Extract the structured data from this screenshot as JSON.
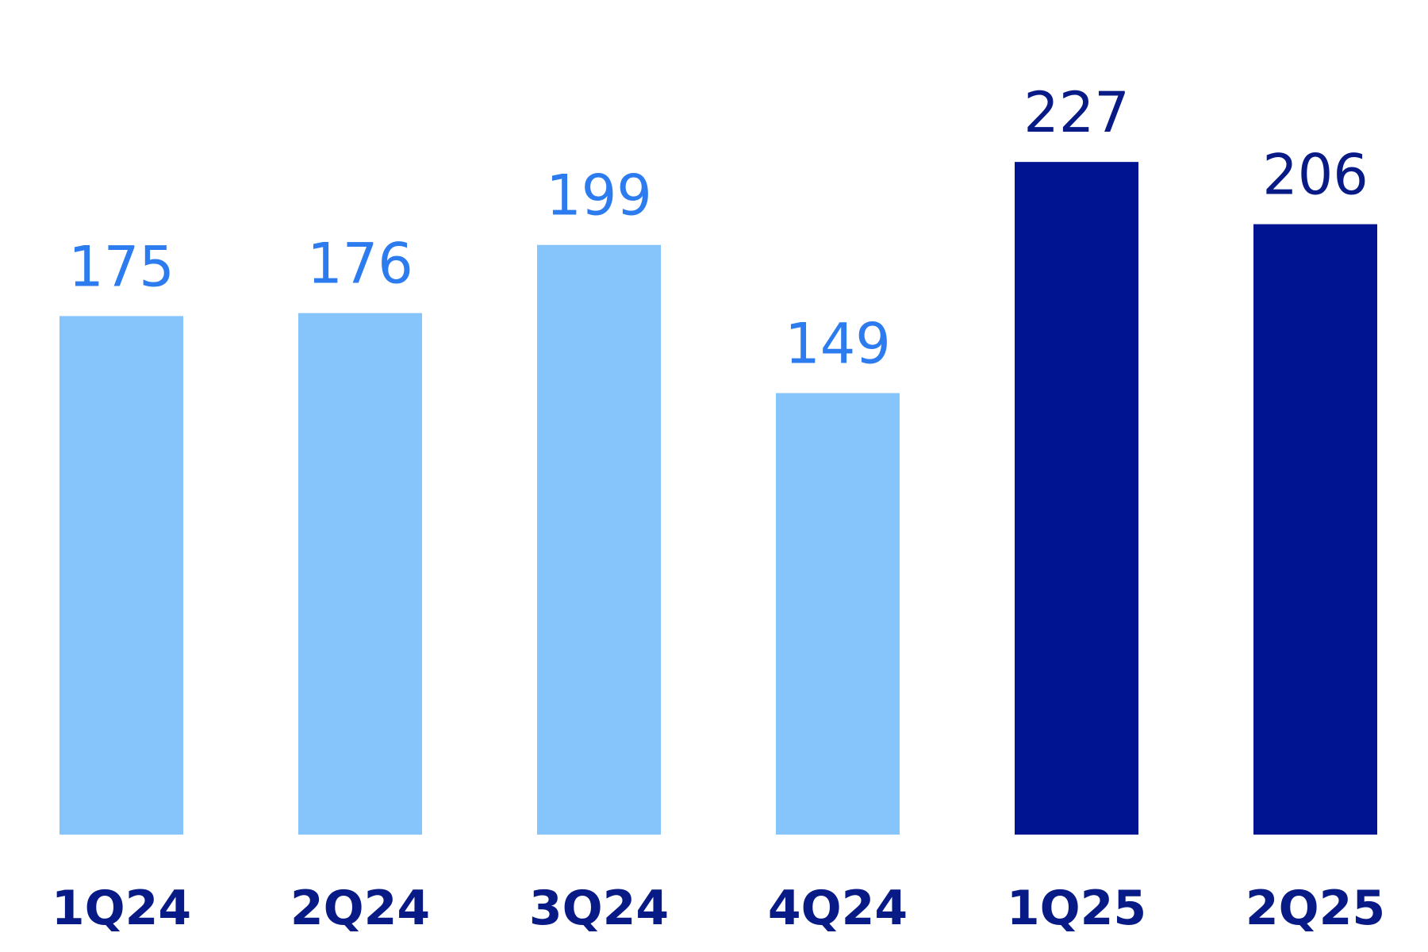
{
  "chart_data": {
    "type": "bar",
    "title": "",
    "xlabel": "",
    "ylabel": "",
    "categories": [
      "1Q24",
      "2Q24",
      "3Q24",
      "4Q24",
      "1Q25",
      "2Q25"
    ],
    "values": [
      175,
      176,
      199,
      149,
      227,
      206
    ],
    "value_labels": [
      "175",
      "176",
      "199",
      "149",
      "227",
      "206"
    ],
    "ylim": [
      0,
      240
    ],
    "grid": false,
    "legend": "none",
    "colors": {
      "bar_light": "#85C5FB",
      "bar_dark": "#001391",
      "label_light": "#2C7CF0",
      "label_dark": "#071A86",
      "category_label": "#071A86"
    },
    "bar_color_keys": [
      "light",
      "light",
      "light",
      "light",
      "dark",
      "dark"
    ]
  }
}
